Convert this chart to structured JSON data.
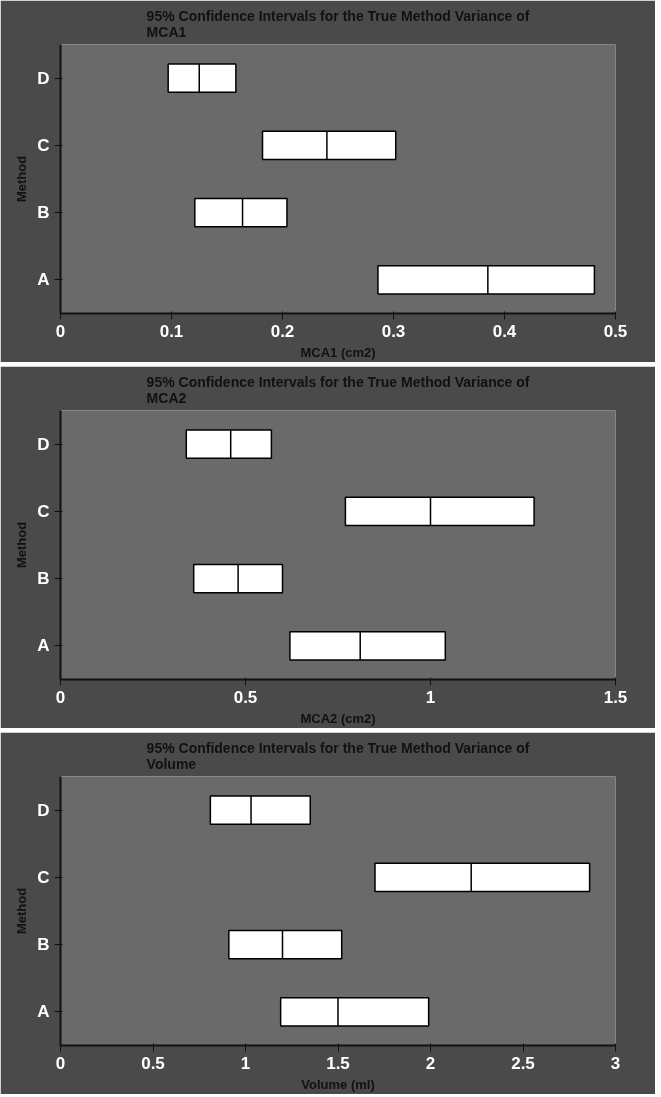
{
  "chart_data": [
    {
      "type": "box",
      "orientation": "horizontal",
      "title": "95% Confidence Intervals for the True Method Variance of MCA1",
      "xlabel": "MCA1 (cm2)",
      "ylabel": "Method",
      "categories": [
        "D",
        "C",
        "B",
        "A"
      ],
      "color": "#ffffff",
      "boxes": [
        {
          "low": 0.097,
          "q1": 0.097,
          "median": 0.125,
          "q3": 0.158,
          "high": 0.158
        },
        {
          "low": 0.182,
          "q1": 0.182,
          "median": 0.24,
          "q3": 0.302,
          "high": 0.302
        },
        {
          "low": 0.121,
          "q1": 0.121,
          "median": 0.164,
          "q3": 0.204,
          "high": 0.204
        },
        {
          "low": 0.286,
          "q1": 0.286,
          "median": 0.385,
          "q3": 0.481,
          "high": 0.481
        }
      ],
      "xlim": [
        0,
        0.5
      ],
      "xticks": [
        0,
        0.1,
        0.2,
        0.3,
        0.4,
        0.5
      ],
      "grid": false
    },
    {
      "type": "box",
      "orientation": "horizontal",
      "title": "95% Confidence Intervals for the True Method Variance of MCA2",
      "xlabel": "MCA2 (cm2)",
      "ylabel": "Method",
      "categories": [
        "D",
        "C",
        "B",
        "A"
      ],
      "color": "#ffffff",
      "boxes": [
        {
          "low": 0.34,
          "q1": 0.34,
          "median": 0.46,
          "q3": 0.57,
          "high": 0.57
        },
        {
          "low": 0.77,
          "q1": 0.77,
          "median": 1.0,
          "q3": 1.28,
          "high": 1.28
        },
        {
          "low": 0.36,
          "q1": 0.36,
          "median": 0.48,
          "q3": 0.6,
          "high": 0.6
        },
        {
          "low": 0.62,
          "q1": 0.62,
          "median": 0.81,
          "q3": 1.04,
          "high": 1.04
        }
      ],
      "xlim": [
        0,
        1.5
      ],
      "xticks": [
        0,
        0.5,
        1,
        1.5
      ],
      "grid": false
    },
    {
      "type": "box",
      "orientation": "horizontal",
      "title": "95% Confidence Intervals for the True Method Variance of Volume",
      "xlabel": "Volume (ml)",
      "ylabel": "Method",
      "categories": [
        "D",
        "C",
        "B",
        "A"
      ],
      "color": "#ffffff",
      "boxes": [
        {
          "low": 0.81,
          "q1": 0.81,
          "median": 1.03,
          "q3": 1.35,
          "high": 1.35
        },
        {
          "low": 1.7,
          "q1": 1.7,
          "median": 2.22,
          "q3": 2.86,
          "high": 2.86
        },
        {
          "low": 0.91,
          "q1": 0.91,
          "median": 1.2,
          "q3": 1.52,
          "high": 1.52
        },
        {
          "low": 1.19,
          "q1": 1.19,
          "median": 1.5,
          "q3": 1.99,
          "high": 1.99
        }
      ],
      "xlim": [
        0,
        3
      ],
      "xticks": [
        0,
        0.5,
        1,
        1.5,
        2,
        2.5,
        3
      ],
      "grid": false
    }
  ]
}
